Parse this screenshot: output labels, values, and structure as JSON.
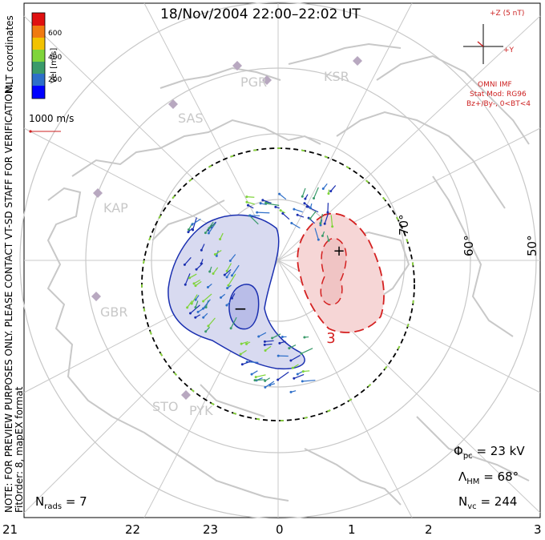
{
  "title": "18/Nov/2004 22:00–22:02 UT",
  "coordinates_label": "MLT coordinates",
  "colorbar": {
    "label": "Vel [m/s]",
    "ticks": [
      "600",
      "400",
      "200"
    ],
    "colors": [
      "#0000ff",
      "#2e6fc9",
      "#3a9a6a",
      "#7fd43a",
      "#f2c200",
      "#f07a10",
      "#e01010"
    ]
  },
  "velocity_scale": "1000 m/s",
  "imf": {
    "bz_label": "+Z (5 nT)",
    "by_label": "+Y",
    "source": "OMNI IMF",
    "model": "Stat Mod: RG96",
    "condition": "Bz+/By-, 0<BT<4"
  },
  "stations": [
    "PGR",
    "KSR",
    "SAS",
    "KAP",
    "GBR",
    "STO",
    "PYK"
  ],
  "latitude_labels": [
    "70°",
    "60°",
    "50°"
  ],
  "mlt_labels": [
    "21",
    "22",
    "23",
    "0",
    "1",
    "2",
    "3"
  ],
  "potential": {
    "min_marker": "−",
    "max_marker": "+",
    "contour_label": "3"
  },
  "stats": {
    "phi_symbol": "Φ",
    "phi_sub": "pc",
    "phi_value": "= 23 kV",
    "lambda_symbol": "Λ",
    "lambda_sub": "HM",
    "lambda_value": "= 68°",
    "nvc_symbol": "N",
    "nvc_sub": "vc",
    "nvc_value": "= 244",
    "nrads_symbol": "N",
    "nrads_sub": "rads",
    "nrads_value": "= 7"
  },
  "notes": {
    "preview": "NOTE: FOR PREVIEW PURPOSES ONLY. PLEASE CONTACT VT-SD STAFF FOR VERIFICATION.",
    "fit": "FitOrder: 8, mapEX format"
  },
  "colors": {
    "negative_cell_fill": "#d8daf0",
    "negative_cell_line": "#1a2fb0",
    "positive_cell_fill": "#f6d6d6",
    "positive_cell_line": "#d42020",
    "coastline": "#c8c8c8",
    "grid": "#c8c8c8"
  }
}
